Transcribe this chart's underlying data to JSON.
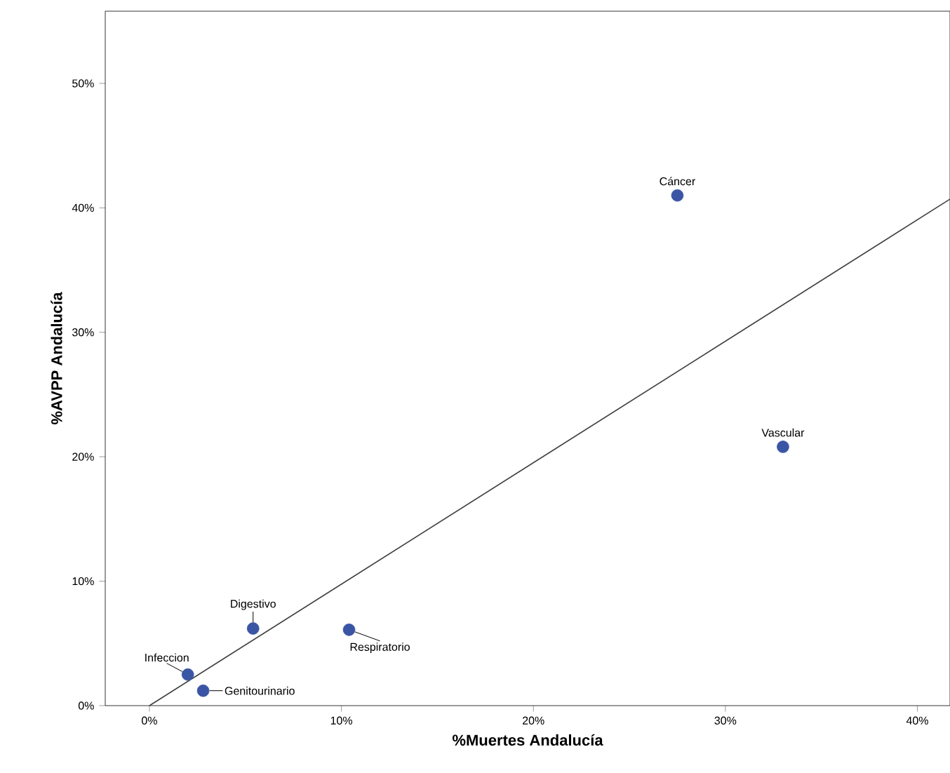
{
  "chart_data": {
    "type": "scatter",
    "xlabel": "%Muertes Andalucía",
    "ylabel": "%AVPP Andalucía",
    "x": [
      27.5,
      33.0,
      10.4,
      5.4,
      2.0,
      2.8
    ],
    "series": [
      {
        "color": "#3b55a5",
        "values": [
          41.0,
          20.8,
          6.1,
          6.2,
          2.5,
          1.2
        ]
      },
      {
        "type": "line",
        "color": "#404040",
        "x": [
          0,
          41.7
        ],
        "values": [
          0,
          40.7
        ]
      }
    ],
    "annotations": [
      {
        "text": "Cáncer",
        "x": 27.5,
        "y": 41.0
      },
      {
        "text": "Vascular",
        "x": 33.0,
        "y": 20.8
      },
      {
        "text": "Respiratorio",
        "x": 10.4,
        "y": 6.1
      },
      {
        "text": "Digestivo",
        "x": 5.4,
        "y": 6.2
      },
      {
        "text": "Infeccion",
        "x": 2.0,
        "y": 2.5
      },
      {
        "text": "Genitourinario",
        "x": 2.8,
        "y": 1.2
      }
    ],
    "xlim": [
      -2.3,
      41.7
    ],
    "ylim": [
      0,
      55.8
    ],
    "xticks": [
      {
        "value": 0,
        "label": "0%"
      },
      {
        "value": 10,
        "label": "10%"
      },
      {
        "value": 20,
        "label": "20%"
      },
      {
        "value": 30,
        "label": "30%"
      },
      {
        "value": 40,
        "label": "40%"
      }
    ],
    "yticks": [
      {
        "value": 0,
        "label": "0%"
      },
      {
        "value": 10,
        "label": "10%"
      },
      {
        "value": 20,
        "label": "20%"
      },
      {
        "value": 30,
        "label": "30%"
      },
      {
        "value": 40,
        "label": "40%"
      },
      {
        "value": 50,
        "label": "50%"
      }
    ],
    "grid": false
  }
}
